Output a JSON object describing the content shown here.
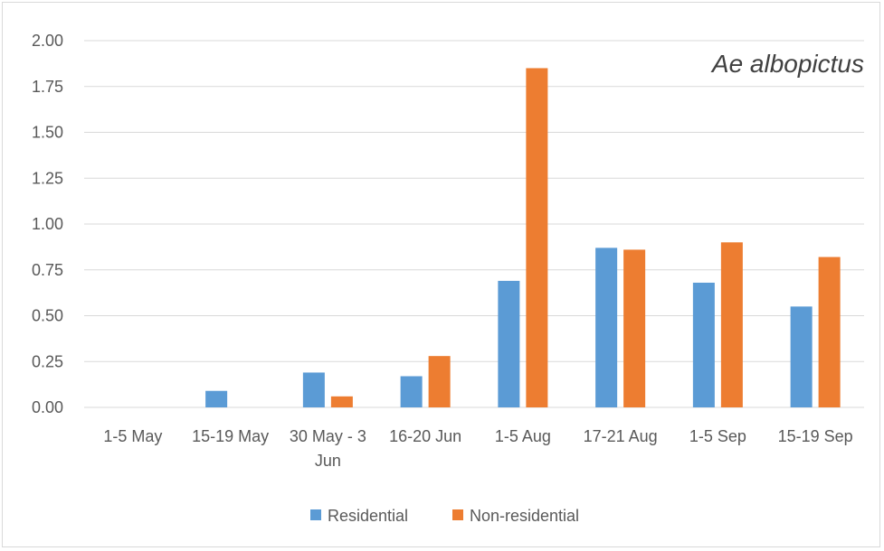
{
  "chart_data": {
    "type": "bar",
    "title": "Ae albopictus",
    "xlabel": "",
    "ylabel": "",
    "ylim": [
      0,
      2.0
    ],
    "yticks": [
      "0.00",
      "0.25",
      "0.50",
      "0.75",
      "1.00",
      "1.25",
      "1.50",
      "1.75",
      "2.00"
    ],
    "grid": true,
    "legend_position": "bottom",
    "categories": [
      [
        "1-5 May"
      ],
      [
        "15-19 May"
      ],
      [
        "30 May - 3",
        "Jun"
      ],
      [
        "16-20 Jun"
      ],
      [
        "1-5 Aug"
      ],
      [
        "17-21 Aug"
      ],
      [
        "1-5 Sep"
      ],
      [
        "15-19 Sep"
      ]
    ],
    "series": [
      {
        "name": "Residential",
        "color": "#5b9bd5",
        "values": [
          0,
          0.09,
          0.19,
          0.17,
          0.69,
          0.87,
          0.68,
          0.55
        ]
      },
      {
        "name": "Non-residential",
        "color": "#ed7d31",
        "values": [
          0,
          0,
          0.06,
          0.28,
          1.85,
          0.86,
          0.9,
          0.82
        ]
      }
    ]
  }
}
